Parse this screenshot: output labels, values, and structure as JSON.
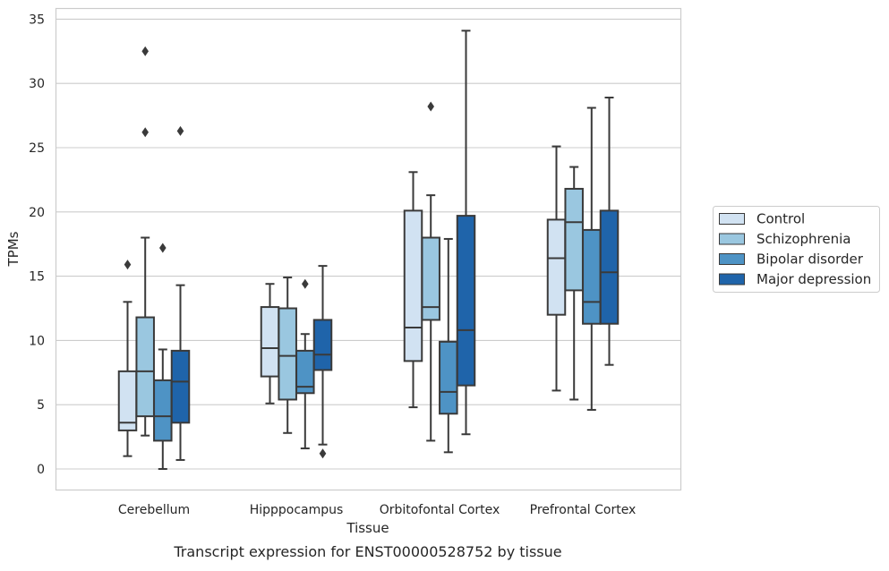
{
  "chart_data": {
    "type": "box",
    "caption": "Transcript expression for ENST00000528752 by tissue",
    "xlabel": "Tissue",
    "ylabel": "TPMs",
    "ylim": [
      -1.6,
      35.7
    ],
    "yticks": [
      0,
      5,
      10,
      15,
      20,
      25,
      30,
      35
    ],
    "grid": "horizontal",
    "legend_position": "right",
    "categories": [
      "Cerebellum",
      "Hipppocampus",
      "Orbitofontal Cortex",
      "Prefrontal Cortex"
    ],
    "series": [
      {
        "name": "Control",
        "color": "#d1e2f2",
        "boxes": [
          {
            "whisker_low": 1.0,
            "q1": 3.0,
            "median": 3.6,
            "q3": 7.6,
            "whisker_high": 13.0,
            "outliers": [
              15.9
            ]
          },
          {
            "whisker_low": 5.1,
            "q1": 7.2,
            "median": 9.4,
            "q3": 12.6,
            "whisker_high": 14.4,
            "outliers": []
          },
          {
            "whisker_low": 4.8,
            "q1": 8.4,
            "median": 11.0,
            "q3": 20.1,
            "whisker_high": 23.1,
            "outliers": []
          },
          {
            "whisker_low": 6.1,
            "q1": 12.0,
            "median": 16.4,
            "q3": 19.4,
            "whisker_high": 25.1,
            "outliers": []
          }
        ]
      },
      {
        "name": "Schizophrenia",
        "color": "#9ac7e0",
        "boxes": [
          {
            "whisker_low": 2.6,
            "q1": 4.1,
            "median": 7.6,
            "q3": 11.8,
            "whisker_high": 18.0,
            "outliers": [
              26.2,
              32.5
            ]
          },
          {
            "whisker_low": 2.8,
            "q1": 5.4,
            "median": 8.8,
            "q3": 12.5,
            "whisker_high": 14.9,
            "outliers": []
          },
          {
            "whisker_low": 2.2,
            "q1": 11.6,
            "median": 12.6,
            "q3": 18.0,
            "whisker_high": 21.3,
            "outliers": [
              28.2
            ]
          },
          {
            "whisker_low": 5.4,
            "q1": 13.9,
            "median": 19.2,
            "q3": 21.8,
            "whisker_high": 23.5,
            "outliers": []
          }
        ]
      },
      {
        "name": "Bipolar disorder",
        "color": "#4e93c5",
        "boxes": [
          {
            "whisker_low": 0.0,
            "q1": 2.2,
            "median": 4.1,
            "q3": 6.9,
            "whisker_high": 9.3,
            "outliers": [
              17.2
            ]
          },
          {
            "whisker_low": 1.6,
            "q1": 5.9,
            "median": 6.4,
            "q3": 9.2,
            "whisker_high": 10.5,
            "outliers": [
              14.4
            ]
          },
          {
            "whisker_low": 1.3,
            "q1": 4.3,
            "median": 6.0,
            "q3": 9.9,
            "whisker_high": 17.9,
            "outliers": []
          },
          {
            "whisker_low": 4.6,
            "q1": 11.3,
            "median": 13.0,
            "q3": 18.6,
            "whisker_high": 28.1,
            "outliers": []
          }
        ]
      },
      {
        "name": "Major depression",
        "color": "#1f64aa",
        "boxes": [
          {
            "whisker_low": 0.7,
            "q1": 3.6,
            "median": 6.8,
            "q3": 9.2,
            "whisker_high": 14.3,
            "outliers": [
              26.3
            ]
          },
          {
            "whisker_low": 1.9,
            "q1": 7.7,
            "median": 8.9,
            "q3": 11.6,
            "whisker_high": 15.8,
            "outliers": [
              1.2
            ]
          },
          {
            "whisker_low": 2.7,
            "q1": 6.5,
            "median": 10.8,
            "q3": 19.7,
            "whisker_high": 34.1,
            "outliers": []
          },
          {
            "whisker_low": 8.1,
            "q1": 11.3,
            "median": 15.3,
            "q3": 20.1,
            "whisker_high": 28.9,
            "outliers": []
          }
        ]
      }
    ]
  }
}
